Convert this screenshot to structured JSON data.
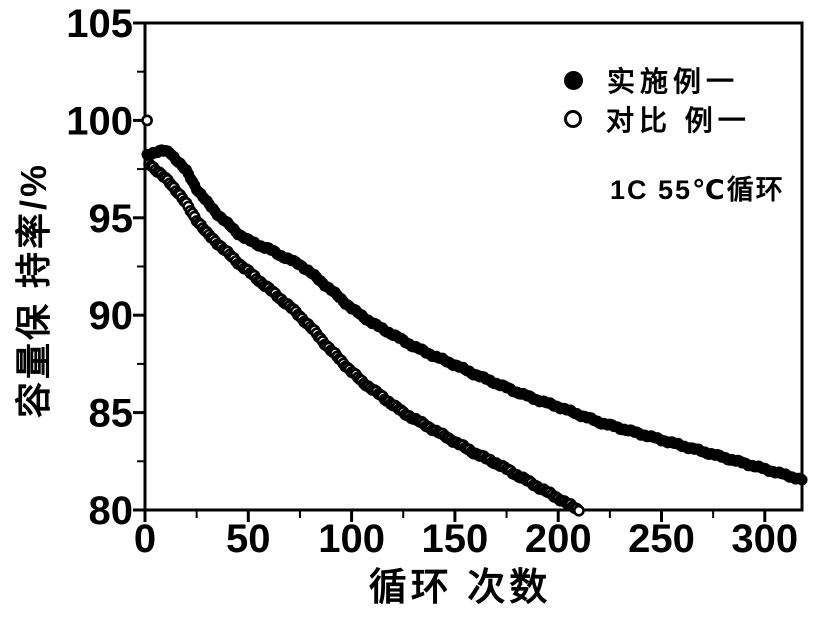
{
  "chart_data": {
    "type": "scatter",
    "title": "",
    "xlabel": "循环 次数",
    "ylabel": "容量保 持率/%",
    "annotation": "1C 55℃循环",
    "xlim": [
      0,
      318
    ],
    "ylim": [
      80,
      105
    ],
    "x_major_ticks": [
      0,
      50,
      100,
      150,
      200,
      250,
      300
    ],
    "x_minor_ticks": [
      25,
      75,
      125,
      175,
      225,
      275
    ],
    "y_major_ticks": [
      80,
      85,
      90,
      95,
      100,
      105
    ],
    "y_minor_ticks": [
      82.5,
      87.5,
      92.5,
      97.5,
      102.5
    ],
    "grid": false,
    "legend_position": "upper-right-inside",
    "series": [
      {
        "name": "实施例一",
        "marker": "filled-circle",
        "color": "#000000",
        "point_interval_cycles": 1,
        "cycle_start": 1,
        "cycle_end": 318,
        "anchors": [
          [
            1,
            98.2
          ],
          [
            4,
            98.35
          ],
          [
            8,
            98.45
          ],
          [
            12,
            98.35
          ],
          [
            16,
            97.9
          ],
          [
            20,
            97.4
          ],
          [
            25,
            96.5
          ],
          [
            30,
            95.8
          ],
          [
            35,
            95.2
          ],
          [
            40,
            94.7
          ],
          [
            45,
            94.2
          ],
          [
            50,
            93.85
          ],
          [
            55,
            93.6
          ],
          [
            60,
            93.4
          ],
          [
            65,
            93.1
          ],
          [
            70,
            92.85
          ],
          [
            75,
            92.6
          ],
          [
            80,
            92.2
          ],
          [
            90,
            91.3
          ],
          [
            100,
            90.35
          ],
          [
            110,
            89.6
          ],
          [
            120,
            89.0
          ],
          [
            130,
            88.4
          ],
          [
            140,
            87.9
          ],
          [
            150,
            87.45
          ],
          [
            160,
            86.95
          ],
          [
            170,
            86.5
          ],
          [
            180,
            86.05
          ],
          [
            190,
            85.65
          ],
          [
            200,
            85.3
          ],
          [
            210,
            84.9
          ],
          [
            220,
            84.5
          ],
          [
            230,
            84.2
          ],
          [
            240,
            83.9
          ],
          [
            250,
            83.6
          ],
          [
            260,
            83.3
          ],
          [
            270,
            83.0
          ],
          [
            280,
            82.7
          ],
          [
            290,
            82.4
          ],
          [
            300,
            82.1
          ],
          [
            310,
            81.8
          ],
          [
            318,
            81.55
          ]
        ]
      },
      {
        "name": "对比 例一",
        "marker": "open-circle",
        "color": "#000000",
        "point_interval_cycles": 1,
        "cycle_start": 1,
        "cycle_end": 210,
        "anchors": [
          [
            1,
            100.0
          ],
          [
            2,
            97.8
          ],
          [
            5,
            97.5
          ],
          [
            8,
            97.2
          ],
          [
            12,
            96.8
          ],
          [
            16,
            96.3
          ],
          [
            20,
            95.7
          ],
          [
            25,
            94.9
          ],
          [
            30,
            94.2
          ],
          [
            35,
            93.7
          ],
          [
            40,
            93.2
          ],
          [
            45,
            92.7
          ],
          [
            50,
            92.25
          ],
          [
            55,
            91.8
          ],
          [
            60,
            91.35
          ],
          [
            65,
            90.9
          ],
          [
            70,
            90.45
          ],
          [
            75,
            89.95
          ],
          [
            80,
            89.4
          ],
          [
            85,
            88.8
          ],
          [
            90,
            88.2
          ],
          [
            95,
            87.65
          ],
          [
            100,
            87.1
          ],
          [
            105,
            86.6
          ],
          [
            110,
            86.2
          ],
          [
            115,
            85.8
          ],
          [
            120,
            85.4
          ],
          [
            125,
            85.0
          ],
          [
            130,
            84.7
          ],
          [
            135,
            84.4
          ],
          [
            140,
            84.1
          ],
          [
            145,
            83.8
          ],
          [
            150,
            83.5
          ],
          [
            155,
            83.2
          ],
          [
            160,
            82.9
          ],
          [
            165,
            82.65
          ],
          [
            170,
            82.4
          ],
          [
            175,
            82.1
          ],
          [
            180,
            81.8
          ],
          [
            185,
            81.5
          ],
          [
            190,
            81.2
          ],
          [
            195,
            80.9
          ],
          [
            200,
            80.6
          ],
          [
            205,
            80.3
          ],
          [
            210,
            80.0
          ]
        ]
      }
    ],
    "style": {
      "frame_color": "#000000",
      "background": "#ffffff",
      "marker_diameter_px": 11,
      "jitter_pct": 0.07
    }
  }
}
